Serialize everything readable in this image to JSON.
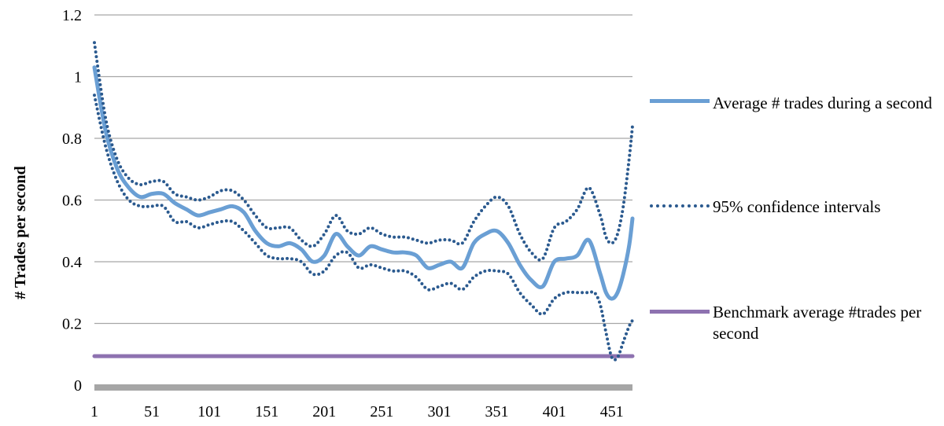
{
  "chart_data": {
    "type": "line",
    "title": "",
    "xlabel": "",
    "ylabel": "# Trades per second",
    "xlim": [
      1,
      469
    ],
    "ylim": [
      0,
      1.2
    ],
    "x_ticks": [
      "1",
      "51",
      "101",
      "151",
      "201",
      "251",
      "301",
      "351",
      "401",
      "451"
    ],
    "y_ticks": [
      "0",
      "0.2",
      "0.4",
      "0.6",
      "0.8",
      "1",
      "1.2"
    ],
    "grid": true,
    "legend_position": "right",
    "series": [
      {
        "name": "Average # trades during a second",
        "color": "#6a9fd4",
        "style": "solid",
        "x": [
          1,
          11,
          21,
          31,
          41,
          51,
          61,
          71,
          81,
          91,
          101,
          111,
          121,
          131,
          141,
          151,
          161,
          171,
          181,
          191,
          201,
          211,
          221,
          231,
          241,
          251,
          261,
          271,
          281,
          291,
          301,
          311,
          321,
          331,
          341,
          351,
          361,
          371,
          381,
          391,
          401,
          411,
          421,
          431,
          441,
          446,
          451,
          456,
          461,
          466,
          469
        ],
        "y": [
          1.03,
          0.82,
          0.7,
          0.64,
          0.61,
          0.62,
          0.62,
          0.59,
          0.57,
          0.55,
          0.56,
          0.57,
          0.58,
          0.56,
          0.5,
          0.46,
          0.45,
          0.46,
          0.44,
          0.4,
          0.42,
          0.49,
          0.45,
          0.42,
          0.45,
          0.44,
          0.43,
          0.43,
          0.42,
          0.38,
          0.39,
          0.4,
          0.38,
          0.46,
          0.49,
          0.5,
          0.46,
          0.39,
          0.34,
          0.32,
          0.4,
          0.41,
          0.42,
          0.47,
          0.36,
          0.3,
          0.28,
          0.3,
          0.36,
          0.45,
          0.54
        ]
      },
      {
        "name": "95% confidence intervals",
        "color": "#2b5a8f",
        "style": "dotted",
        "x": [
          1,
          11,
          21,
          31,
          41,
          51,
          61,
          71,
          81,
          91,
          101,
          111,
          121,
          131,
          141,
          151,
          161,
          171,
          181,
          191,
          201,
          211,
          221,
          231,
          241,
          251,
          261,
          271,
          281,
          291,
          301,
          311,
          321,
          331,
          341,
          351,
          361,
          371,
          381,
          391,
          401,
          411,
          421,
          431,
          441,
          446,
          451,
          456,
          461,
          466,
          469
        ],
        "y": [
          1.11,
          0.86,
          0.73,
          0.67,
          0.65,
          0.66,
          0.66,
          0.62,
          0.61,
          0.6,
          0.61,
          0.63,
          0.63,
          0.6,
          0.55,
          0.51,
          0.51,
          0.51,
          0.47,
          0.45,
          0.49,
          0.55,
          0.5,
          0.49,
          0.51,
          0.49,
          0.48,
          0.48,
          0.47,
          0.46,
          0.47,
          0.47,
          0.46,
          0.53,
          0.58,
          0.61,
          0.58,
          0.49,
          0.43,
          0.41,
          0.51,
          0.53,
          0.57,
          0.64,
          0.55,
          0.48,
          0.46,
          0.49,
          0.58,
          0.73,
          0.84
        ]
      },
      {
        "name": "",
        "color": "#2b5a8f",
        "style": "dotted",
        "x": [
          1,
          11,
          21,
          31,
          41,
          51,
          61,
          71,
          81,
          91,
          101,
          111,
          121,
          131,
          141,
          151,
          161,
          171,
          181,
          191,
          201,
          211,
          221,
          231,
          241,
          251,
          261,
          271,
          281,
          291,
          301,
          311,
          321,
          331,
          341,
          351,
          361,
          371,
          381,
          391,
          401,
          411,
          421,
          431,
          436,
          441,
          446,
          451,
          456,
          461,
          466,
          469
        ],
        "y": [
          0.94,
          0.77,
          0.66,
          0.6,
          0.58,
          0.58,
          0.58,
          0.53,
          0.53,
          0.51,
          0.52,
          0.53,
          0.53,
          0.5,
          0.46,
          0.42,
          0.41,
          0.41,
          0.4,
          0.36,
          0.37,
          0.42,
          0.43,
          0.38,
          0.39,
          0.38,
          0.37,
          0.37,
          0.35,
          0.31,
          0.32,
          0.33,
          0.31,
          0.35,
          0.37,
          0.37,
          0.36,
          0.3,
          0.26,
          0.23,
          0.28,
          0.3,
          0.3,
          0.3,
          0.3,
          0.26,
          0.17,
          0.09,
          0.09,
          0.14,
          0.19,
          0.21
        ]
      },
      {
        "name": "Benchmark average #trades per second",
        "color": "#8e72b0",
        "style": "solid",
        "x": [
          1,
          469
        ],
        "y": [
          0.094,
          0.094
        ]
      }
    ],
    "legend": [
      {
        "label": "Average # trades during a second",
        "color": "#6a9fd4",
        "style": "solid"
      },
      {
        "label": "95% confidence intervals",
        "color": "#2b5a8f",
        "style": "dotted"
      },
      {
        "label": "Benchmark average #trades per second",
        "color": "#8e72b0",
        "style": "solid"
      }
    ],
    "colors": {
      "grid": "#a6a6a6",
      "x_axis_bar": "#a6a6a6"
    }
  }
}
